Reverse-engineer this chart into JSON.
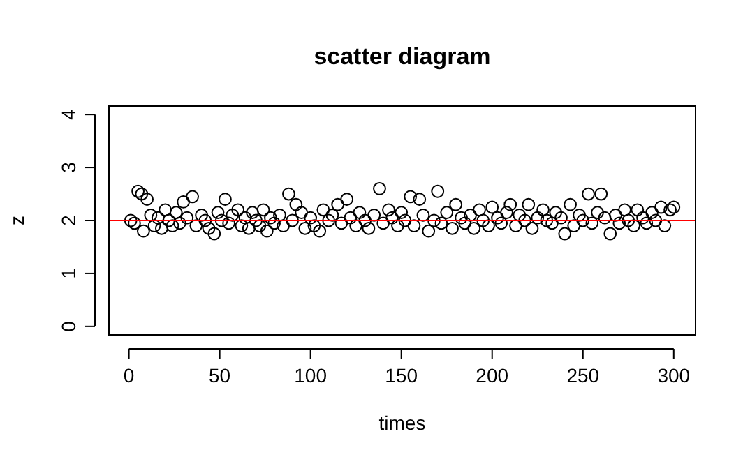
{
  "chart_data": {
    "type": "scatter",
    "title": "scatter diagram",
    "xlabel": "times",
    "ylabel": "z",
    "xlim": [
      -11,
      312
    ],
    "ylim": [
      -0.16,
      4.16
    ],
    "xticks": [
      0,
      50,
      100,
      150,
      200,
      250,
      300
    ],
    "yticks": [
      0,
      1,
      2,
      3,
      4
    ],
    "grid": false,
    "marker": "circle",
    "ref_lines": [
      {
        "axis": "y",
        "value": 2,
        "color": "#ff0000"
      }
    ],
    "series": [
      {
        "color": "#000000",
        "x": [
          1,
          3,
          5,
          7,
          8,
          10,
          12,
          14,
          16,
          18,
          20,
          22,
          24,
          26,
          28,
          30,
          32,
          35,
          37,
          40,
          42,
          44,
          47,
          49,
          51,
          53,
          55,
          57,
          60,
          62,
          64,
          66,
          68,
          70,
          72,
          74,
          76,
          78,
          80,
          83,
          85,
          88,
          90,
          92,
          95,
          97,
          100,
          102,
          105,
          107,
          110,
          112,
          115,
          117,
          120,
          122,
          125,
          127,
          130,
          132,
          135,
          138,
          140,
          143,
          145,
          148,
          150,
          152,
          155,
          157,
          160,
          162,
          165,
          168,
          170,
          172,
          175,
          178,
          180,
          183,
          185,
          188,
          190,
          193,
          195,
          198,
          200,
          203,
          205,
          208,
          210,
          213,
          215,
          218,
          220,
          222,
          225,
          228,
          230,
          233,
          235,
          238,
          240,
          243,
          245,
          248,
          250,
          253,
          255,
          258,
          260,
          262,
          265,
          268,
          270,
          273,
          275,
          278,
          280,
          283,
          285,
          288,
          290,
          293,
          295,
          298,
          300
        ],
        "values": [
          2.0,
          1.95,
          2.55,
          2.5,
          1.8,
          2.4,
          2.1,
          1.9,
          2.05,
          1.85,
          2.2,
          2.0,
          1.9,
          2.15,
          1.95,
          2.35,
          2.05,
          2.45,
          1.9,
          2.1,
          2.0,
          1.85,
          1.75,
          2.15,
          2.0,
          2.4,
          1.95,
          2.1,
          2.2,
          1.9,
          2.05,
          1.85,
          2.15,
          2.0,
          1.9,
          2.2,
          1.8,
          2.05,
          1.95,
          2.1,
          1.9,
          2.5,
          2.0,
          2.3,
          2.15,
          1.85,
          2.05,
          1.9,
          1.8,
          2.2,
          2.0,
          2.1,
          2.3,
          1.95,
          2.4,
          2.05,
          1.9,
          2.15,
          2.0,
          1.85,
          2.1,
          2.6,
          1.95,
          2.2,
          2.05,
          1.9,
          2.15,
          2.0,
          2.45,
          1.9,
          2.4,
          2.1,
          1.8,
          2.0,
          2.55,
          1.95,
          2.15,
          1.85,
          2.3,
          2.05,
          1.95,
          2.1,
          1.85,
          2.2,
          2.0,
          1.9,
          2.25,
          2.05,
          1.95,
          2.15,
          2.3,
          1.9,
          2.1,
          2.0,
          2.3,
          1.85,
          2.05,
          2.2,
          2.0,
          1.95,
          2.15,
          2.05,
          1.75,
          2.3,
          1.9,
          2.1,
          2.0,
          2.5,
          1.95,
          2.15,
          2.5,
          2.05,
          1.75,
          2.1,
          1.95,
          2.2,
          2.0,
          1.9,
          2.2,
          2.05,
          1.95,
          2.15,
          2.0,
          2.25,
          1.9,
          2.2,
          2.25
        ]
      }
    ]
  }
}
